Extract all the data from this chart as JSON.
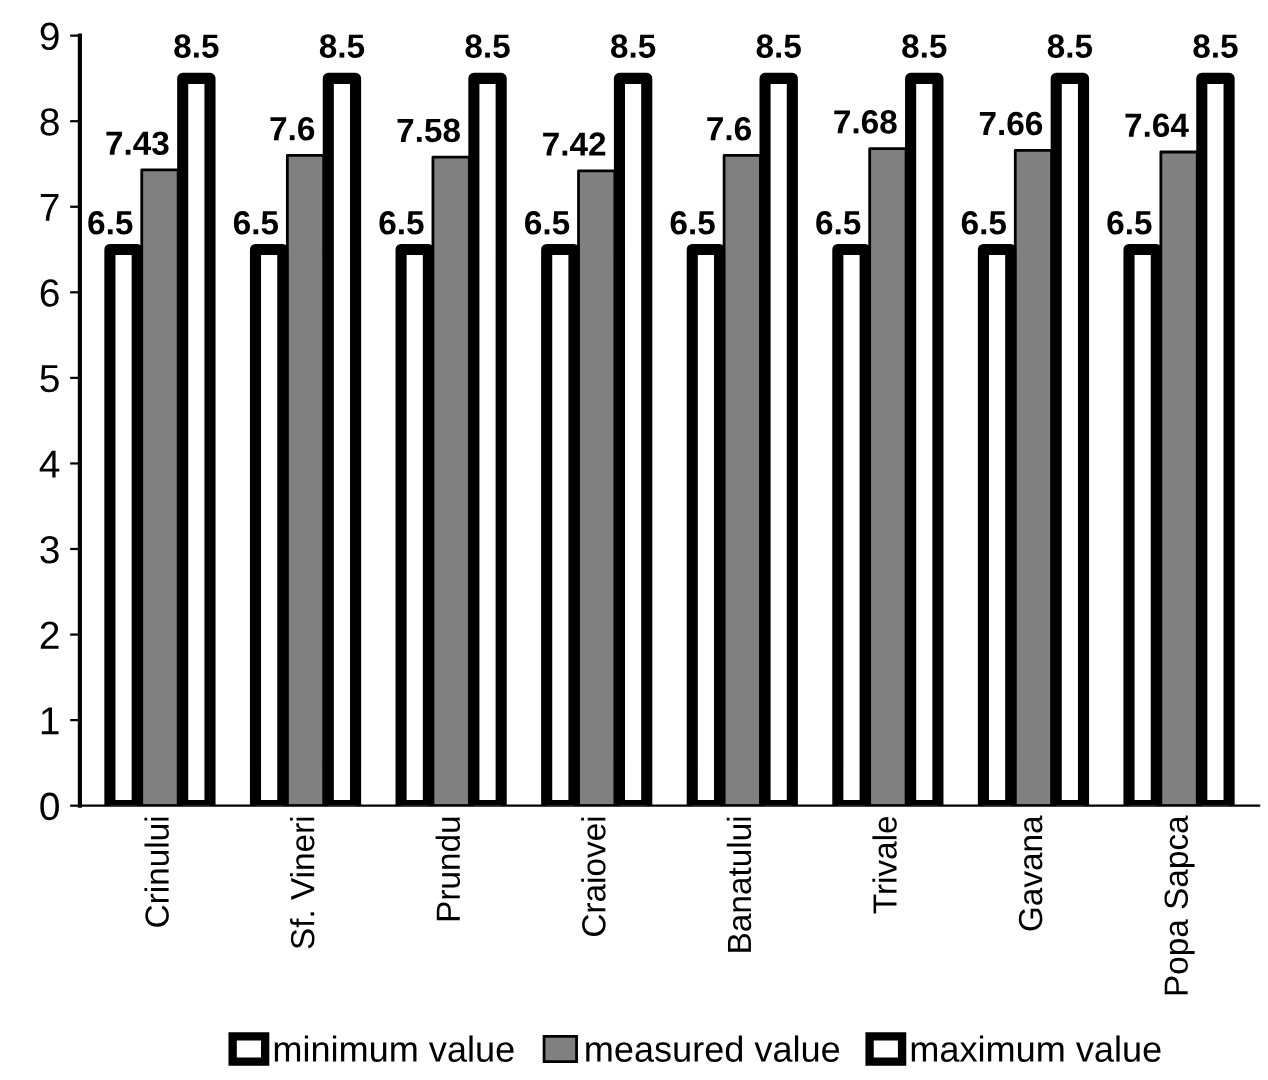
{
  "chart_data": {
    "type": "bar",
    "categories": [
      "Crinului",
      "Sf. Vineri",
      "Prundu",
      "Craiovei",
      "Banatului",
      "Trivale",
      "Gavana",
      "Popa Sapca"
    ],
    "series": [
      {
        "name": "minimum value",
        "color": "#ffffff",
        "values": [
          6.5,
          6.5,
          6.5,
          6.5,
          6.5,
          6.5,
          6.5,
          6.5
        ]
      },
      {
        "name": "measured value",
        "color": "#808080",
        "values": [
          7.43,
          7.6,
          7.58,
          7.42,
          7.6,
          7.68,
          7.66,
          7.64
        ]
      },
      {
        "name": "maximum value",
        "color": "#ffffff",
        "values": [
          8.5,
          8.5,
          8.5,
          8.5,
          8.5,
          8.5,
          8.5,
          8.5
        ]
      }
    ],
    "ylim": [
      0,
      9
    ],
    "yticks": [
      0,
      1,
      2,
      3,
      4,
      5,
      6,
      7,
      8,
      9
    ],
    "data_labels": true,
    "legend": "bottom",
    "grid": false
  }
}
